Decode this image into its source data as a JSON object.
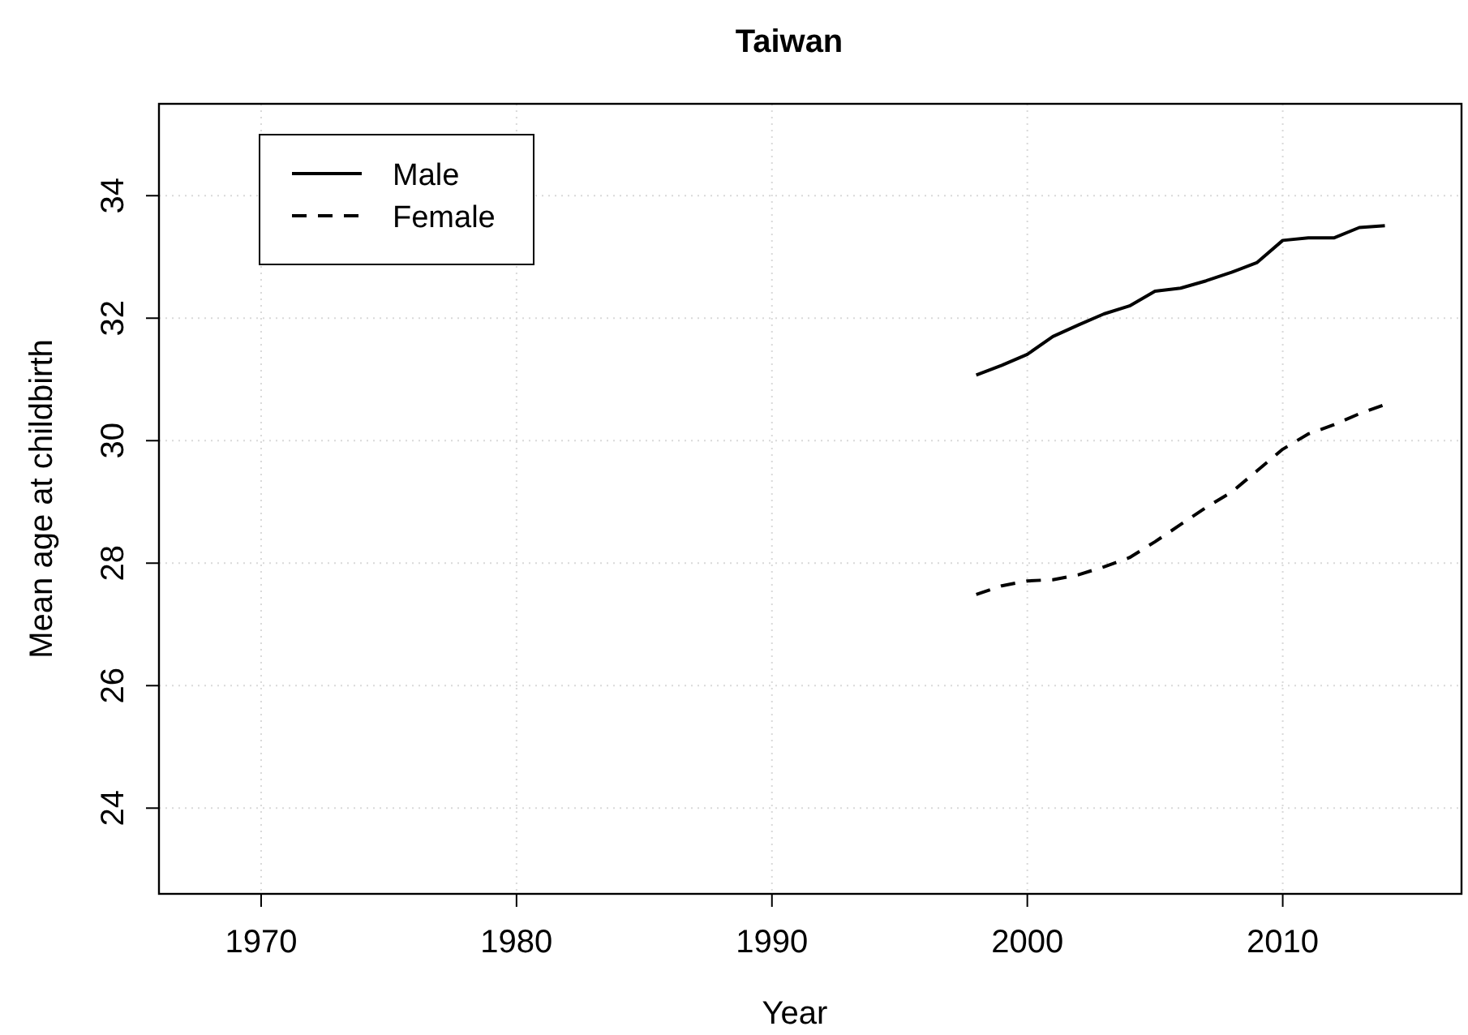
{
  "chart_data": {
    "type": "line",
    "title": "Taiwan",
    "xlabel": "Year",
    "ylabel": "Mean age at childbirth",
    "x": [
      1998,
      1999,
      2000,
      2001,
      2002,
      2003,
      2004,
      2005,
      2006,
      2007,
      2008,
      2009,
      2010,
      2011,
      2012,
      2013,
      2014
    ],
    "series": [
      {
        "name": "Male",
        "color": "#000000",
        "line_style": "solid",
        "values": [
          31.07,
          31.23,
          31.41,
          31.7,
          31.89,
          32.07,
          32.2,
          32.44,
          32.49,
          32.61,
          32.75,
          32.91,
          33.27,
          33.31,
          33.31,
          33.48,
          33.51
        ]
      },
      {
        "name": "Female",
        "color": "#000000",
        "line_style": "dashed",
        "values": [
          27.49,
          27.63,
          27.71,
          27.73,
          27.81,
          27.94,
          28.09,
          28.35,
          28.63,
          28.91,
          29.16,
          29.51,
          29.86,
          30.11,
          30.26,
          30.44,
          30.59
        ]
      }
    ],
    "xlim": [
      1966,
      2017
    ],
    "xticks": [
      1970,
      1980,
      1990,
      2000,
      2010
    ],
    "ylim": [
      22.6,
      35.5
    ],
    "yticks": [
      24,
      26,
      28,
      30,
      32,
      34
    ],
    "grid": true,
    "legend": "top left"
  }
}
